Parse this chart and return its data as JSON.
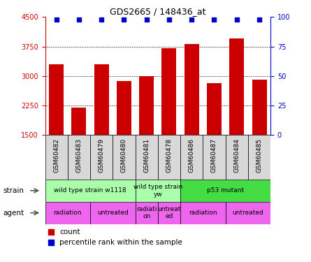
{
  "title": "GDS2665 / 148436_at",
  "samples": [
    "GSM60482",
    "GSM60483",
    "GSM60479",
    "GSM60480",
    "GSM60481",
    "GSM60478",
    "GSM60486",
    "GSM60487",
    "GSM60484",
    "GSM60485"
  ],
  "counts": [
    3300,
    2200,
    3300,
    2870,
    3000,
    3700,
    3820,
    2820,
    3950,
    2900
  ],
  "bar_color": "#cc0000",
  "dot_color": "#0000cc",
  "ylim_left": [
    1500,
    4500
  ],
  "ylim_right": [
    0,
    100
  ],
  "yticks_left": [
    1500,
    2250,
    3000,
    3750,
    4500
  ],
  "yticks_right": [
    0,
    25,
    50,
    75,
    100
  ],
  "strain_groups": [
    {
      "label": "wild type strain w1118",
      "start": 0,
      "end": 4,
      "color": "#aaffaa"
    },
    {
      "label": "wild type strain\nyw",
      "start": 4,
      "end": 6,
      "color": "#aaffaa"
    },
    {
      "label": "p53 mutant",
      "start": 6,
      "end": 10,
      "color": "#44dd44"
    }
  ],
  "agent_groups": [
    {
      "label": "radiation",
      "start": 0,
      "end": 2
    },
    {
      "label": "untreated",
      "start": 2,
      "end": 4
    },
    {
      "label": "radiati\non",
      "start": 4,
      "end": 5
    },
    {
      "label": "untreat\ned",
      "start": 5,
      "end": 6
    },
    {
      "label": "radiation",
      "start": 6,
      "end": 8
    },
    {
      "label": "untreated",
      "start": 8,
      "end": 10
    }
  ],
  "agent_color": "#ee66ee",
  "legend_count_color": "#cc0000",
  "legend_pct_color": "#0000cc"
}
